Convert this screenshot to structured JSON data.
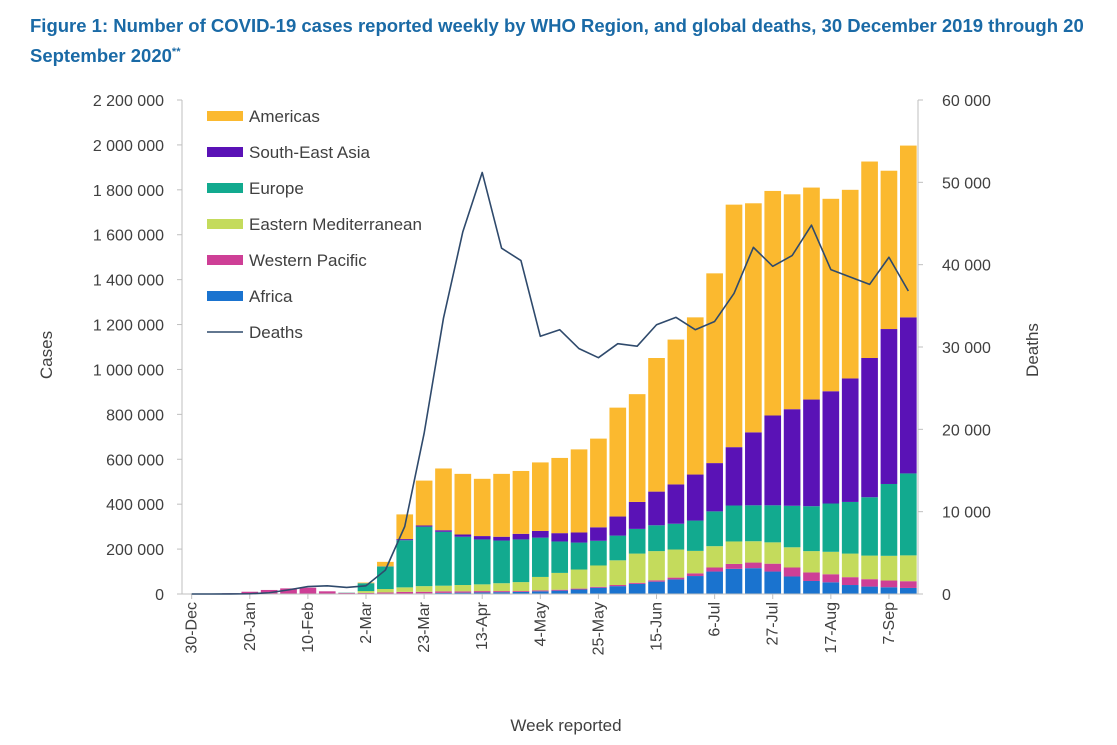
{
  "title": {
    "main": "Figure 1: Number of COVID-19 cases reported weekly by WHO Region, and global deaths, 30 December 2019 through 20 September 2020",
    "superscript": "**"
  },
  "colors": {
    "Americas": "#FBB92F",
    "South-East Asia": "#5A12B6",
    "Europe": "#12AA8F",
    "Eastern Mediterranean": "#C4DB5C",
    "Western Pacific": "#CE3F96",
    "Africa": "#1A73CF",
    "Deaths": "#2F4A6C"
  },
  "chart_data": {
    "type": "bar",
    "stacked": true,
    "xlabel": "Week reported",
    "ylabel": "Cases",
    "y2label": "Deaths",
    "ylim": [
      0,
      2200000
    ],
    "y2lim": [
      0,
      60000
    ],
    "yticks": [
      "0",
      "200 000",
      "400 000",
      "600 000",
      "800 000",
      "1 000 000",
      "1 200 000",
      "1 400 000",
      "1 600 000",
      "1 800 000",
      "2 000 000",
      "2 200 000"
    ],
    "y2ticks": [
      "0",
      "10 000",
      "20 000",
      "30 000",
      "40 000",
      "50 000",
      "60 000"
    ],
    "categories": [
      "30-Dec",
      "6-Jan",
      "13-Jan",
      "20-Jan",
      "27-Jan",
      "3-Feb",
      "10-Feb",
      "17-Feb",
      "24-Feb",
      "2-Mar",
      "9-Mar",
      "16-Mar",
      "23-Mar",
      "30-Mar",
      "6-Apr",
      "13-Apr",
      "20-Apr",
      "27-Apr",
      "4-May",
      "11-May",
      "18-May",
      "25-May",
      "1-Jun",
      "8-Jun",
      "15-Jun",
      "22-Jun",
      "29-Jun",
      "6-Jul",
      "13-Jul",
      "20-Jul",
      "27-Jul",
      "3-Aug",
      "10-Aug",
      "17-Aug",
      "24-Aug",
      "31-Aug",
      "7-Sep",
      "14-Sep"
    ],
    "tick_labels": [
      "30-Dec",
      "",
      "",
      "20-Jan",
      "",
      "",
      "10-Feb",
      "",
      "",
      "2-Mar",
      "",
      "",
      "23-Mar",
      "",
      "",
      "13-Apr",
      "",
      "",
      "4-May",
      "",
      "",
      "25-May",
      "",
      "",
      "15-Jun",
      "",
      "",
      "6-Jul",
      "",
      "",
      "27-Jul",
      "",
      "",
      "17-Aug",
      "",
      "",
      "7-Sep",
      ""
    ],
    "series": [
      {
        "name": "Africa",
        "values": [
          0,
          0,
          0,
          0,
          0,
          0,
          0,
          0,
          0,
          0,
          200,
          1500,
          3000,
          5000,
          6000,
          7000,
          8000,
          9000,
          12000,
          15000,
          20000,
          28000,
          35000,
          45000,
          55000,
          65000,
          80000,
          100000,
          112000,
          115000,
          100000,
          78000,
          58000,
          52000,
          40000,
          33000,
          30000,
          27000
        ]
      },
      {
        "name": "Western Pacific",
        "values": [
          300,
          900,
          3000,
          10000,
          18000,
          25000,
          28000,
          12000,
          5000,
          5000,
          7000,
          8000,
          7000,
          7000,
          6000,
          6000,
          5000,
          4000,
          4000,
          4000,
          4000,
          4000,
          5000,
          5000,
          6000,
          8000,
          12000,
          18000,
          22000,
          25000,
          35000,
          40000,
          38000,
          36000,
          35000,
          33000,
          30000,
          30000
        ]
      },
      {
        "name": "Eastern Mediterranean",
        "values": [
          0,
          0,
          0,
          0,
          0,
          0,
          0,
          0,
          300,
          8000,
          15000,
          20000,
          25000,
          25000,
          28000,
          30000,
          35000,
          40000,
          60000,
          75000,
          85000,
          95000,
          110000,
          130000,
          130000,
          125000,
          100000,
          95000,
          100000,
          95000,
          95000,
          90000,
          95000,
          100000,
          105000,
          105000,
          110000,
          115000
        ]
      },
      {
        "name": "Europe",
        "values": [
          0,
          0,
          0,
          0,
          0,
          0,
          0,
          0,
          1000,
          35000,
          100000,
          210000,
          265000,
          240000,
          215000,
          200000,
          190000,
          190000,
          175000,
          140000,
          120000,
          110000,
          110000,
          110000,
          115000,
          115000,
          135000,
          155000,
          160000,
          160000,
          165000,
          185000,
          200000,
          215000,
          230000,
          260000,
          320000,
          365000
        ]
      },
      {
        "name": "South-East Asia",
        "values": [
          0,
          0,
          0,
          0,
          0,
          0,
          0,
          0,
          0,
          100,
          1000,
          5000,
          5000,
          7000,
          10000,
          15000,
          17000,
          25000,
          30000,
          37000,
          45000,
          60000,
          85000,
          120000,
          150000,
          175000,
          205000,
          215000,
          260000,
          325000,
          400000,
          430000,
          475000,
          500000,
          550000,
          620000,
          690000,
          695000
        ]
      },
      {
        "name": "Americas",
        "values": [
          0,
          0,
          0,
          0,
          0,
          0,
          0,
          0,
          0,
          3000,
          20000,
          110000,
          200000,
          275000,
          270000,
          255000,
          280000,
          280000,
          305000,
          335000,
          370000,
          395000,
          485000,
          480000,
          595000,
          645000,
          700000,
          845000,
          1080000,
          1020000,
          1000000,
          957000,
          944000,
          857000,
          840000,
          875000,
          705000,
          765000
        ]
      }
    ],
    "deaths": [
      0,
      0,
      5,
      30,
      150,
      500,
      900,
      1000,
      800,
      1000,
      2900,
      8200,
      19500,
      33500,
      44000,
      51200,
      42000,
      40500,
      31300,
      32100,
      29800,
      28700,
      30400,
      30100,
      32700,
      33600,
      32100,
      33100,
      36500,
      42100,
      39800,
      41100,
      44800,
      39400,
      38500,
      37600,
      40900,
      36800
    ],
    "legend": {
      "placement": "top-left",
      "entries": [
        "Americas",
        "South-East Asia",
        "Europe",
        "Eastern Mediterranean",
        "Western Pacific",
        "Africa",
        "Deaths"
      ]
    },
    "grid": false
  }
}
